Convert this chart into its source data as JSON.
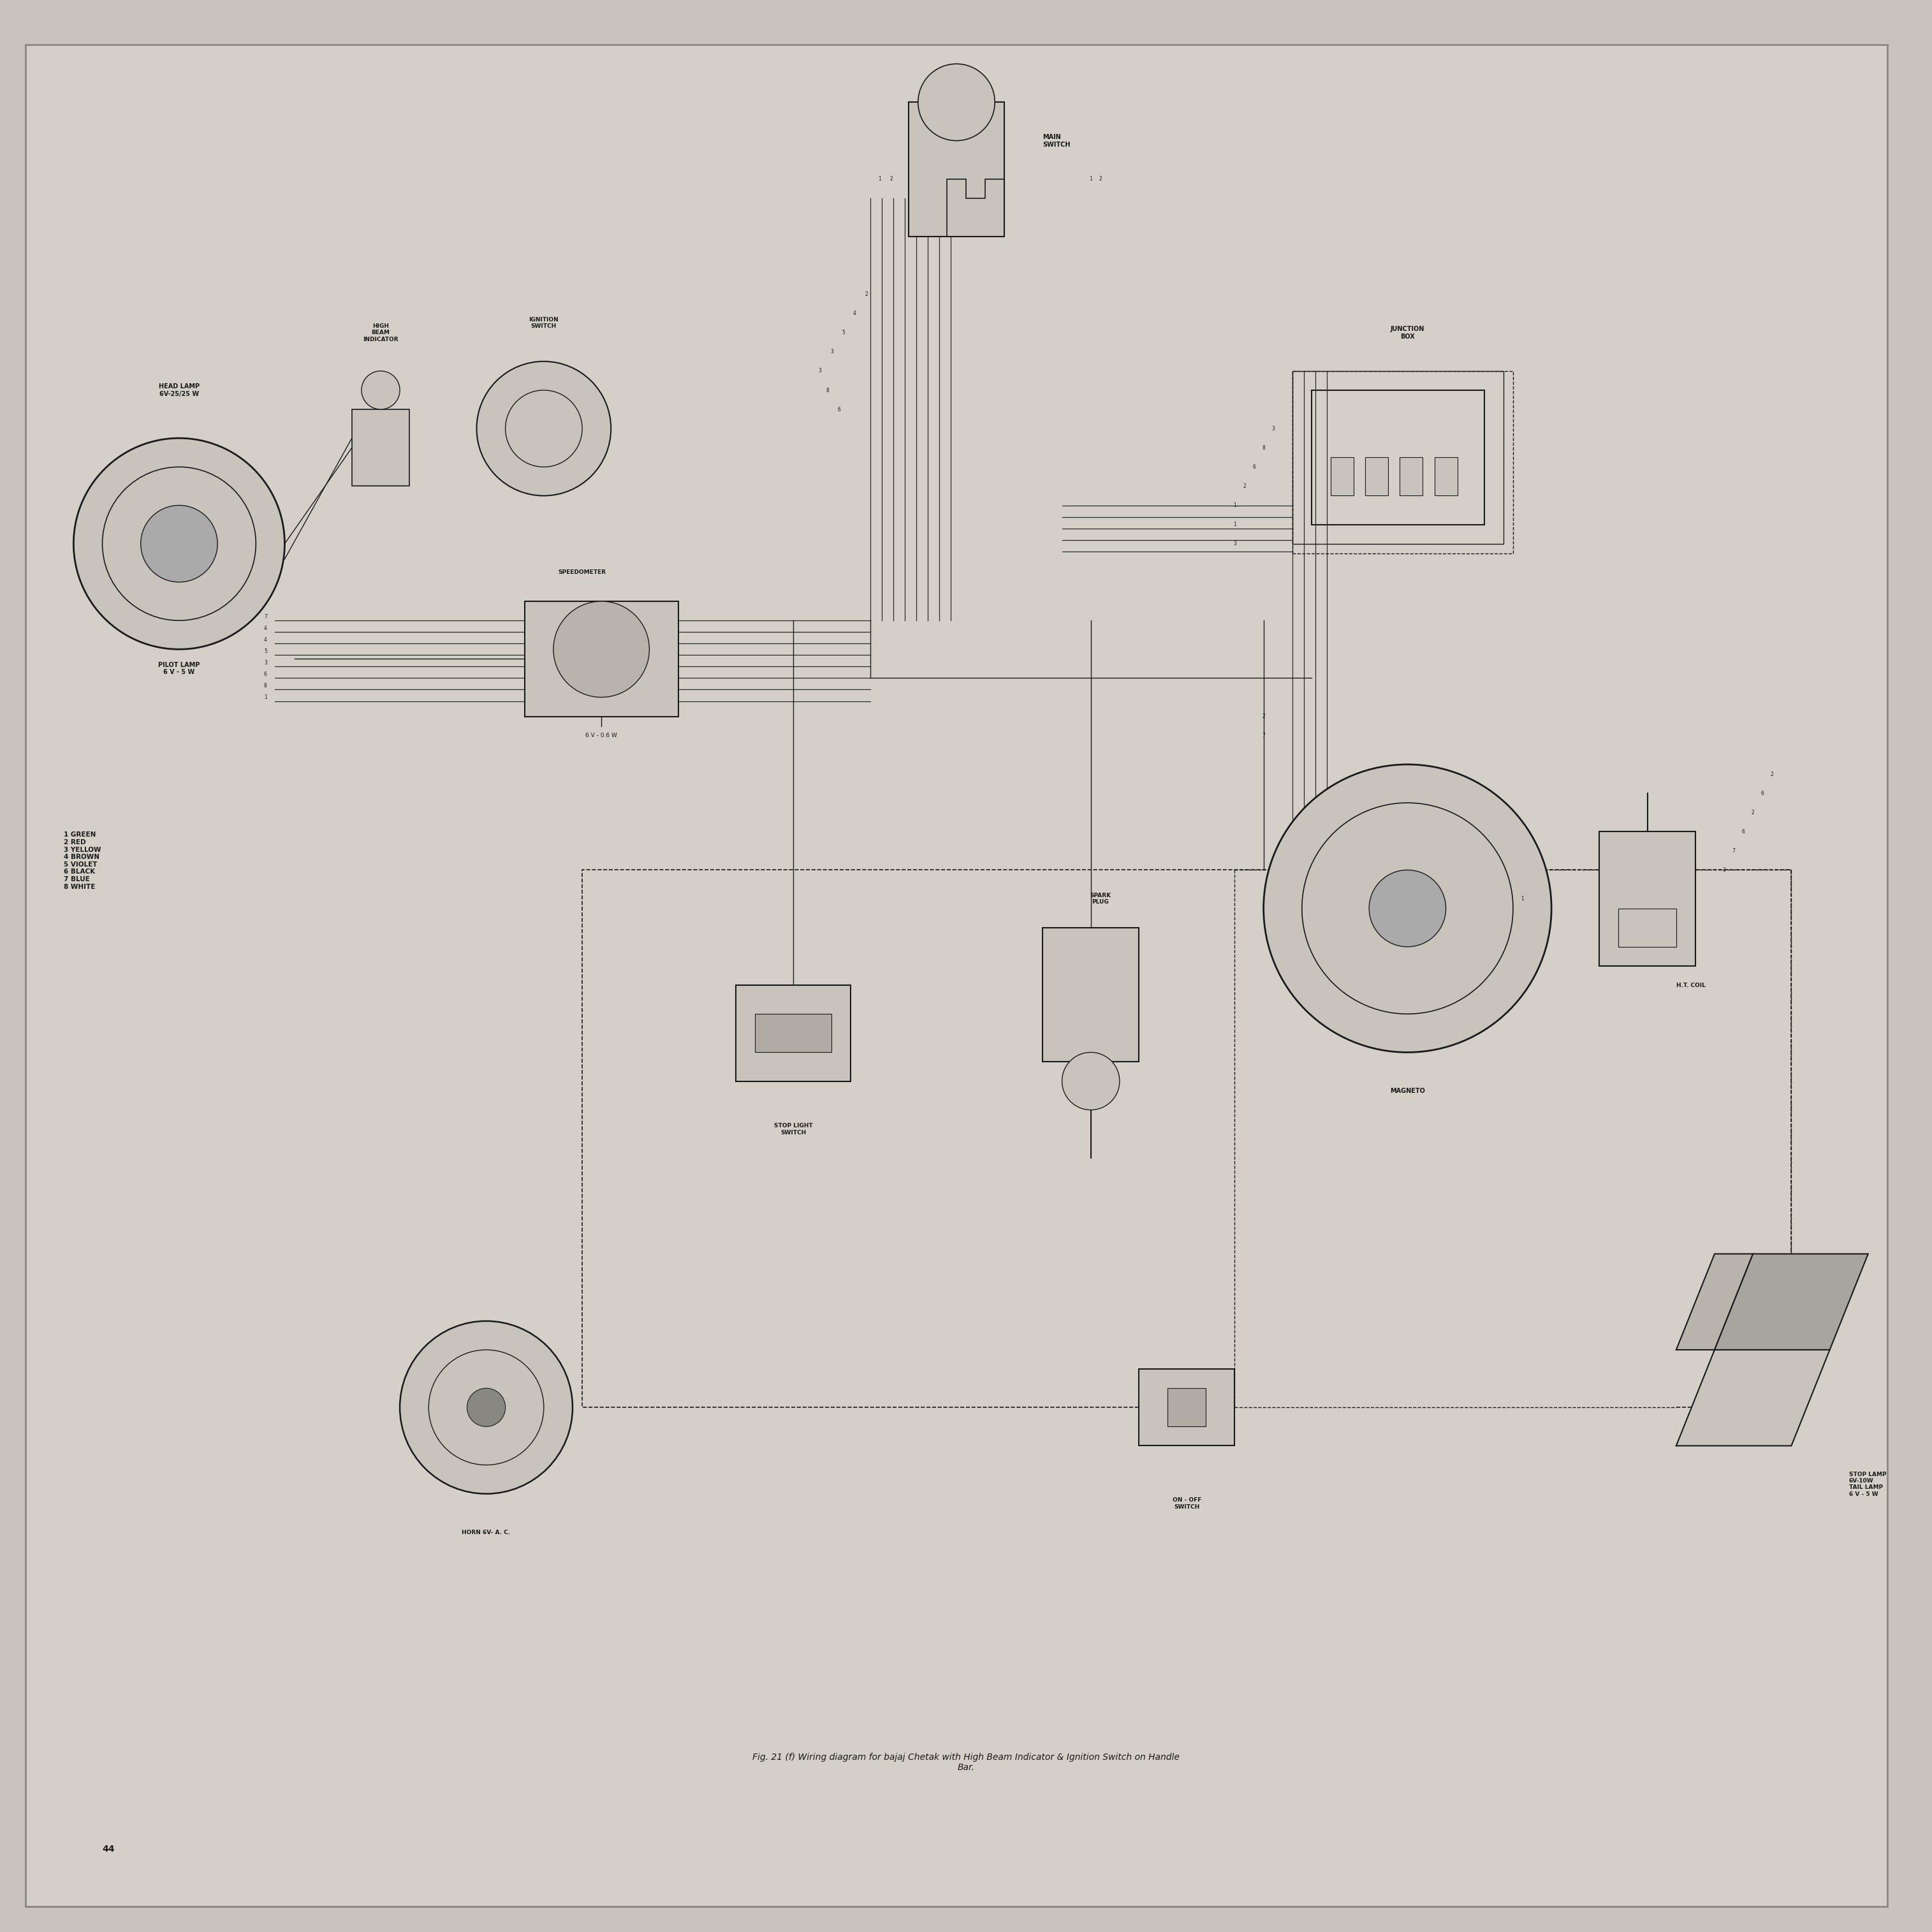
{
  "title": "Fig. 21 (f) Wiring diagram for bajaj Chetak with High Beam Indicator & Ignition Switch on Handle\nBar.",
  "page_number": "44",
  "bg_color": "#c8c4bc",
  "text_color": "#1a1a1a",
  "diagram_bg": "#d4d0c8",
  "legend": [
    "1 GREEN",
    "2 RED",
    "3 YELLOW",
    "4 BROWN",
    "5 VIOLET",
    "6 BLACK",
    "7 BLUE",
    "8 WHITE"
  ],
  "component_labels": {
    "head_lamp": "HEAD LAMP\n6V-25/25 W",
    "pilot_lamp": "PILOT LAMP\n6 V - 5 W",
    "high_beam": "HIGH\nBEAM\nINDICATOR",
    "ignition_switch": "IGNITION\nSWITCH",
    "speedometer": "SPEEDOMETER",
    "speedometer_bulb": "6 V - 0.6 W",
    "main_switch": "MAIN\nSWITCH",
    "junction_box": "JUNCTION\nBOX",
    "stop_light_switch": "STOP LIGHT\nSWITCH",
    "spark_plug": "SPARK\nPLUG",
    "magneto": "MAGNETO",
    "ht_coil": "H.T. COIL",
    "on_off_switch": "ON - OFF\nSWITCH",
    "horn": "HORN 6V- A. C.",
    "stop_lamp": "STOP LAMP\n6V-10W\nTAIL LAMP\n6 V - 5 W"
  }
}
